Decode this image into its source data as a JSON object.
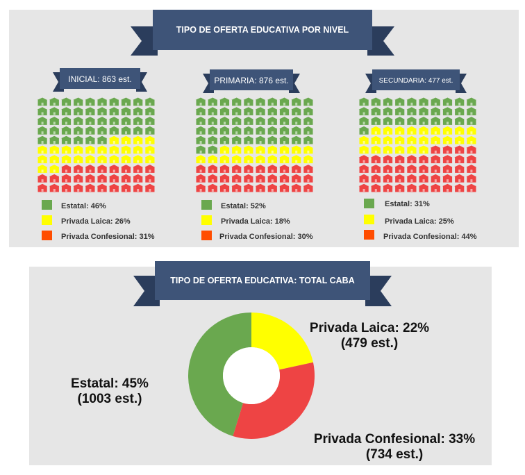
{
  "colors": {
    "estatal": "#6aa84f",
    "privada_laica": "#ffff00",
    "privada_confesional": "#ee4444",
    "legend_confesional": "#ff4d00",
    "banner": "#3e5478",
    "banner_dark": "#2b3d5c",
    "panel": "#e6e6e6"
  },
  "icon": "school-building-icon",
  "top": {
    "title": "TIPO DE OFERTA EDUCATIVA POR NIVEL",
    "levels": [
      {
        "label": "INICIAL: 863 est.",
        "legend": [
          "Estatal: 46%",
          "Privada Laica: 26%",
          "Privada Confesional: 31%"
        ]
      },
      {
        "label": "PRIMARIA: 876 est.",
        "legend": [
          "Estatal: 52%",
          "Privada Laica: 18%",
          "Privada Confesional: 30%"
        ]
      },
      {
        "label": "SECUNDARIA: 477 est.",
        "legend": [
          "Estatal: 31%",
          "Privada Laica: 25%",
          "Privada Confesional: 44%"
        ]
      }
    ]
  },
  "bottom": {
    "title": "TIPO DE OFERTA EDUCATIVA: TOTAL CABA",
    "labels": {
      "estatal_1": "Estatal: 45%",
      "estatal_2": "(1003 est.)",
      "laica_1": "Privada Laica: 22%",
      "laica_2": "(479 est.)",
      "conf_1": "Privada Confesional: 33%",
      "conf_2": "(734 est.)"
    }
  },
  "chart_data": [
    {
      "type": "waffle",
      "title": "INICIAL: 863 est.",
      "rows": 10,
      "cols": 10,
      "categories": [
        "Estatal",
        "Privada Laica",
        "Privada Confesional"
      ],
      "percentages": [
        46,
        26,
        31
      ]
    },
    {
      "type": "waffle",
      "title": "PRIMARIA: 876 est.",
      "rows": 10,
      "cols": 10,
      "categories": [
        "Estatal",
        "Privada Laica",
        "Privada Confesional"
      ],
      "percentages": [
        52,
        18,
        30
      ]
    },
    {
      "type": "waffle",
      "title": "SECUNDARIA: 477 est.",
      "rows": 10,
      "cols": 10,
      "categories": [
        "Estatal",
        "Privada Laica",
        "Privada Confesional"
      ],
      "percentages": [
        31,
        25,
        44
      ]
    },
    {
      "type": "pie",
      "donut": true,
      "title": "TIPO DE OFERTA EDUCATIVA: TOTAL CABA",
      "categories": [
        "Privada Laica",
        "Privada Confesional",
        "Estatal"
      ],
      "values": [
        479,
        734,
        1003
      ],
      "percentages": [
        22,
        33,
        45
      ]
    }
  ]
}
